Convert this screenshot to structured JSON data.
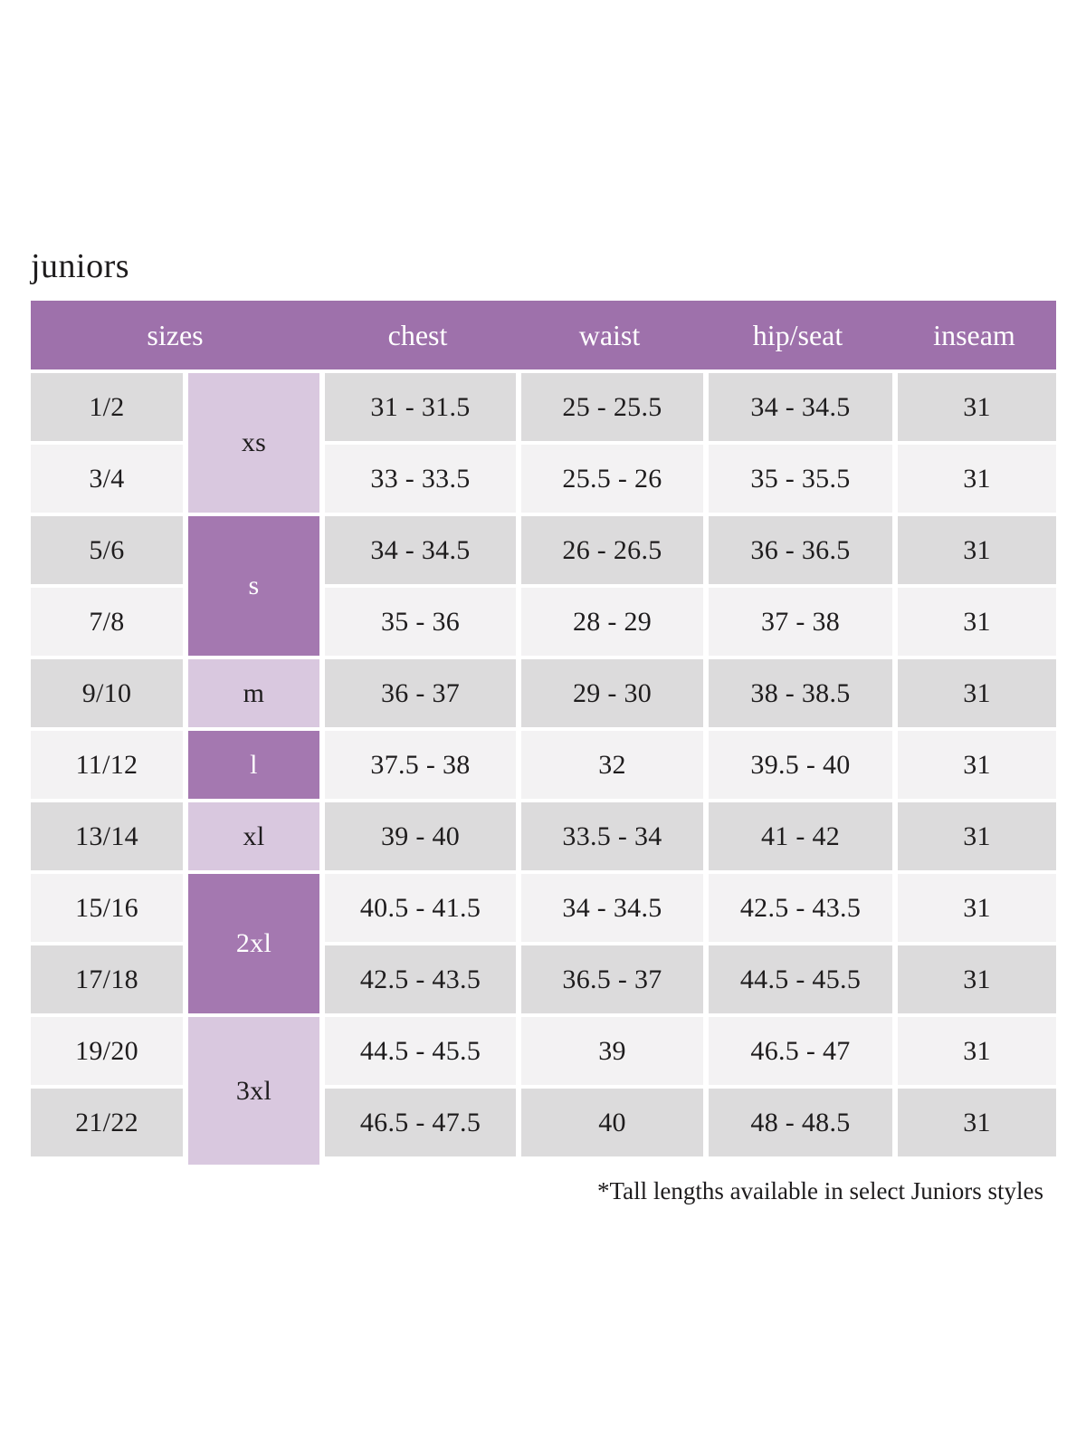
{
  "page": {
    "title": "juniors",
    "footnote": "*Tall lengths available in select Juniors styles"
  },
  "table": {
    "headers": [
      "sizes",
      "chest",
      "waist",
      "hip/seat",
      "inseam"
    ],
    "size_groups": [
      {
        "label": "xs",
        "rows_spanned": 2,
        "shade": "light"
      },
      {
        "label": "s",
        "rows_spanned": 2,
        "shade": "dark"
      },
      {
        "label": "m",
        "rows_spanned": 1,
        "shade": "light"
      },
      {
        "label": "l",
        "rows_spanned": 1,
        "shade": "dark"
      },
      {
        "label": "xl",
        "rows_spanned": 1,
        "shade": "light"
      },
      {
        "label": "2xl",
        "rows_spanned": 2,
        "shade": "dark"
      },
      {
        "label": "3xl",
        "rows_spanned": 2,
        "shade": "light"
      }
    ],
    "rows": [
      {
        "size": "1/2",
        "chest": "31 - 31.5",
        "waist": "25 - 25.5",
        "hip_seat": "34 - 34.5",
        "inseam": "31"
      },
      {
        "size": "3/4",
        "chest": "33 - 33.5",
        "waist": "25.5 - 26",
        "hip_seat": "35 - 35.5",
        "inseam": "31"
      },
      {
        "size": "5/6",
        "chest": "34 - 34.5",
        "waist": "26 - 26.5",
        "hip_seat": "36 - 36.5",
        "inseam": "31"
      },
      {
        "size": "7/8",
        "chest": "35 - 36",
        "waist": "28 - 29",
        "hip_seat": "37 - 38",
        "inseam": "31"
      },
      {
        "size": "9/10",
        "chest": "36 - 37",
        "waist": "29 - 30",
        "hip_seat": "38 - 38.5",
        "inseam": "31"
      },
      {
        "size": "11/12",
        "chest": "37.5 - 38",
        "waist": "32",
        "hip_seat": "39.5 - 40",
        "inseam": "31"
      },
      {
        "size": "13/14",
        "chest": "39 - 40",
        "waist": "33.5 - 34",
        "hip_seat": "41 - 42",
        "inseam": "31"
      },
      {
        "size": "15/16",
        "chest": "40.5 - 41.5",
        "waist": "34 - 34.5",
        "hip_seat": "42.5 - 43.5",
        "inseam": "31"
      },
      {
        "size": "17/18",
        "chest": "42.5 - 43.5",
        "waist": "36.5 - 37",
        "hip_seat": "44.5 - 45.5",
        "inseam": "31"
      },
      {
        "size": "19/20",
        "chest": "44.5 - 45.5",
        "waist": "39",
        "hip_seat": "46.5 - 47",
        "inseam": "31"
      },
      {
        "size": "21/22",
        "chest": "46.5 - 47.5",
        "waist": "40",
        "hip_seat": "48 - 48.5",
        "inseam": "31"
      }
    ],
    "colors": {
      "header_bg": "#9e71ab",
      "header_text": "#ffffff",
      "group_dark": "#a478b0",
      "group_light": "#d9c8df",
      "row_dark": "#dcdbdc",
      "row_light": "#f3f2f3",
      "text": "#1e1c1d"
    }
  }
}
